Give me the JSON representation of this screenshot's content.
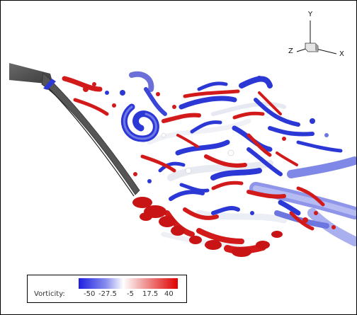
{
  "axis_triad": {
    "y_label": "Y",
    "z_label": "Z",
    "x_label": "X"
  },
  "legend": {
    "title": "Vorticity:",
    "ticks": [
      "-50",
      "-27.5",
      "-5",
      "17.5",
      "40"
    ],
    "colors": {
      "min": "#1f1fe0",
      "mid": "#ffffff",
      "max": "#e00000"
    }
  },
  "palette": {
    "blade": "#555555",
    "red": "#d21a1a",
    "blue": "#2c38d6",
    "white": "#eef0f6"
  }
}
